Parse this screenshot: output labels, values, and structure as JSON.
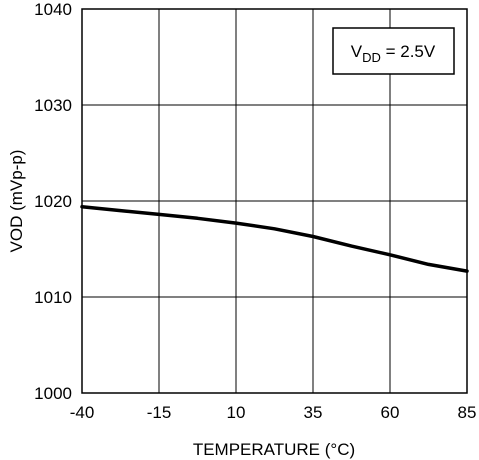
{
  "chart_data": {
    "type": "line",
    "title": "",
    "xlabel": "TEMPERATURE (°C)",
    "ylabel": "VOD (mVp-p)",
    "xlim": [
      -40,
      85
    ],
    "ylim": [
      1000,
      1040
    ],
    "xticks": [
      -40,
      -15,
      10,
      35,
      60,
      85
    ],
    "yticks": [
      1000,
      1010,
      1020,
      1030,
      1040
    ],
    "grid": true,
    "annotation": {
      "sym": "V",
      "sub": "DD",
      "rest": " = 2.5V"
    },
    "series": [
      {
        "x": [
          -40,
          -27.5,
          -15,
          -2.5,
          10,
          22.5,
          35,
          47.5,
          60,
          72.5,
          85
        ],
        "y": [
          1019.4,
          1019.0,
          1018.6,
          1018.2,
          1017.7,
          1017.1,
          1016.3,
          1015.3,
          1014.4,
          1013.4,
          1012.7
        ]
      }
    ]
  }
}
